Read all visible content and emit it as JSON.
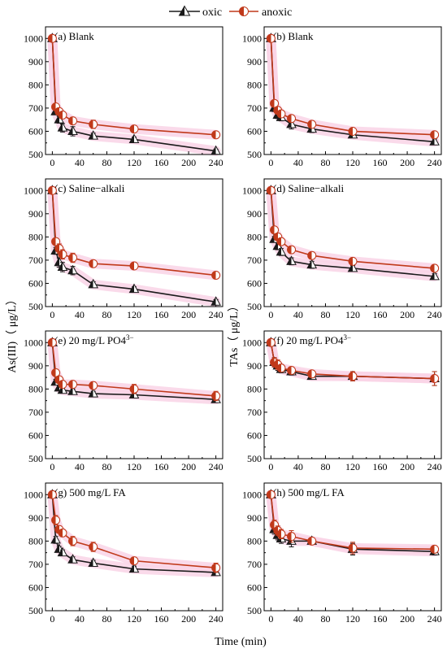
{
  "legend": {
    "items": [
      {
        "label": "oxic",
        "color": "#1a1a1a",
        "marker": "triangle-half-filled"
      },
      {
        "label": "anoxic",
        "color": "#c0391a",
        "marker": "circle-half-filled"
      }
    ],
    "placement": "top-center"
  },
  "figure": {
    "xlabel": "Time (min)",
    "ylabel_left": "As(III)（ μg/L）",
    "ylabel_right": "TAs（ μg/L）"
  },
  "colors": {
    "oxic": "#1a1a1a",
    "anoxic": "#c0391a",
    "highlight": "#f9d3e6"
  },
  "chart_data": [
    {
      "type": "line",
      "title": "(a) Blank",
      "x": [
        0,
        5,
        10,
        15,
        30,
        60,
        120,
        240
      ],
      "xlim": [
        -10,
        250
      ],
      "ylim": [
        500,
        1050
      ],
      "xticks": [
        0,
        40,
        80,
        120,
        160,
        200,
        240
      ],
      "yticks": [
        500,
        600,
        700,
        800,
        900,
        1000
      ],
      "series": [
        {
          "name": "oxic",
          "values": [
            1000,
            685,
            650,
            615,
            600,
            580,
            565,
            515
          ],
          "errors": [
            0,
            12,
            15,
            18,
            20,
            12,
            10,
            8
          ]
        },
        {
          "name": "anoxic",
          "values": [
            1000,
            705,
            685,
            670,
            645,
            630,
            610,
            585
          ],
          "errors": [
            0,
            12,
            12,
            12,
            15,
            18,
            12,
            10
          ]
        }
      ]
    },
    {
      "type": "line",
      "title": "(b) Blank",
      "x": [
        0,
        5,
        10,
        15,
        30,
        60,
        120,
        240
      ],
      "xlim": [
        -10,
        250
      ],
      "ylim": [
        500,
        1050
      ],
      "xticks": [
        0,
        40,
        80,
        120,
        160,
        200,
        240
      ],
      "yticks": [
        500,
        600,
        700,
        800,
        900,
        1000
      ],
      "series": [
        {
          "name": "oxic",
          "values": [
            1000,
            700,
            670,
            660,
            630,
            610,
            585,
            555
          ],
          "errors": [
            0,
            15,
            15,
            15,
            20,
            15,
            12,
            12
          ]
        },
        {
          "name": "anoxic",
          "values": [
            1000,
            720,
            690,
            675,
            655,
            630,
            600,
            585
          ],
          "errors": [
            0,
            12,
            12,
            12,
            15,
            15,
            12,
            12
          ]
        }
      ]
    },
    {
      "type": "line",
      "title": "(c) Saline−alkali",
      "x": [
        0,
        5,
        10,
        15,
        30,
        60,
        120,
        240
      ],
      "xlim": [
        -10,
        250
      ],
      "ylim": [
        500,
        1050
      ],
      "xticks": [
        0,
        40,
        80,
        120,
        160,
        200,
        240
      ],
      "yticks": [
        500,
        600,
        700,
        800,
        900,
        1000
      ],
      "series": [
        {
          "name": "oxic",
          "values": [
            1000,
            740,
            690,
            670,
            655,
            595,
            575,
            520
          ],
          "errors": [
            0,
            15,
            20,
            20,
            18,
            12,
            10,
            10
          ]
        },
        {
          "name": "anoxic",
          "values": [
            1000,
            780,
            750,
            725,
            710,
            685,
            675,
            635
          ],
          "errors": [
            0,
            15,
            20,
            20,
            20,
            12,
            10,
            10
          ]
        }
      ]
    },
    {
      "type": "line",
      "title": "(d) Saline−alkali",
      "x": [
        0,
        5,
        10,
        15,
        30,
        60,
        120,
        240
      ],
      "xlim": [
        -10,
        250
      ],
      "ylim": [
        500,
        1050
      ],
      "xticks": [
        0,
        40,
        80,
        120,
        160,
        200,
        240
      ],
      "yticks": [
        500,
        600,
        700,
        800,
        900,
        1000
      ],
      "series": [
        {
          "name": "oxic",
          "values": [
            1000,
            790,
            760,
            735,
            695,
            680,
            665,
            630
          ],
          "errors": [
            0,
            12,
            15,
            15,
            15,
            15,
            12,
            12
          ]
        },
        {
          "name": "anoxic",
          "values": [
            1000,
            830,
            800,
            780,
            745,
            720,
            695,
            665
          ],
          "errors": [
            0,
            12,
            15,
            15,
            15,
            15,
            15,
            15
          ]
        }
      ]
    },
    {
      "type": "line",
      "title": "(e) 20 mg/L PO4",
      "title_sup": "3−",
      "x": [
        0,
        5,
        10,
        15,
        30,
        60,
        120,
        240
      ],
      "xlim": [
        -10,
        250
      ],
      "ylim": [
        500,
        1050
      ],
      "xticks": [
        0,
        40,
        80,
        120,
        160,
        200,
        240
      ],
      "yticks": [
        500,
        600,
        700,
        800,
        900,
        1000
      ],
      "series": [
        {
          "name": "oxic",
          "values": [
            1000,
            830,
            805,
            795,
            790,
            780,
            775,
            755
          ],
          "errors": [
            0,
            12,
            12,
            10,
            10,
            10,
            10,
            10
          ]
        },
        {
          "name": "anoxic",
          "values": [
            1000,
            870,
            840,
            820,
            820,
            815,
            800,
            770
          ],
          "errors": [
            0,
            15,
            12,
            12,
            12,
            15,
            20,
            20
          ]
        }
      ]
    },
    {
      "type": "line",
      "title": "(f) 20 mg/L PO4",
      "title_sup": "3−",
      "x": [
        0,
        5,
        10,
        15,
        30,
        60,
        120,
        240
      ],
      "xlim": [
        -10,
        250
      ],
      "ylim": [
        500,
        1050
      ],
      "xticks": [
        0,
        40,
        80,
        120,
        160,
        200,
        240
      ],
      "yticks": [
        500,
        600,
        700,
        800,
        900,
        1000
      ],
      "series": [
        {
          "name": "oxic",
          "values": [
            1000,
            915,
            900,
            885,
            875,
            855,
            855,
            845
          ],
          "errors": [
            0,
            20,
            20,
            15,
            15,
            12,
            20,
            30
          ]
        },
        {
          "name": "anoxic",
          "values": [
            1000,
            915,
            905,
            890,
            880,
            865,
            855,
            845
          ],
          "errors": [
            0,
            20,
            20,
            15,
            15,
            12,
            20,
            30
          ]
        }
      ]
    },
    {
      "type": "line",
      "title": "(g) 500 mg/L FA",
      "x": [
        0,
        5,
        10,
        15,
        30,
        60,
        120,
        240
      ],
      "xlim": [
        -10,
        250
      ],
      "ylim": [
        500,
        1050
      ],
      "xticks": [
        0,
        40,
        80,
        120,
        160,
        200,
        240
      ],
      "yticks": [
        500,
        600,
        700,
        800,
        900,
        1000
      ],
      "series": [
        {
          "name": "oxic",
          "values": [
            1000,
            805,
            765,
            750,
            720,
            705,
            680,
            665
          ],
          "errors": [
            0,
            15,
            12,
            12,
            12,
            12,
            12,
            10
          ]
        },
        {
          "name": "anoxic",
          "values": [
            1000,
            890,
            850,
            835,
            800,
            775,
            715,
            685
          ],
          "errors": [
            0,
            20,
            15,
            15,
            20,
            20,
            15,
            20
          ]
        }
      ]
    },
    {
      "type": "line",
      "title": "(h) 500 mg/L FA",
      "x": [
        0,
        5,
        10,
        15,
        30,
        60,
        120,
        240
      ],
      "xlim": [
        -10,
        250
      ],
      "ylim": [
        500,
        1050
      ],
      "xticks": [
        0,
        40,
        80,
        120,
        160,
        200,
        240
      ],
      "yticks": [
        500,
        600,
        700,
        800,
        900,
        1000
      ],
      "series": [
        {
          "name": "oxic",
          "values": [
            1000,
            850,
            825,
            810,
            800,
            800,
            765,
            755
          ],
          "errors": [
            0,
            20,
            20,
            20,
            25,
            12,
            25,
            15
          ]
        },
        {
          "name": "anoxic",
          "values": [
            1000,
            870,
            845,
            830,
            820,
            800,
            770,
            765
          ],
          "errors": [
            0,
            20,
            20,
            20,
            25,
            12,
            25,
            15
          ]
        }
      ]
    }
  ]
}
